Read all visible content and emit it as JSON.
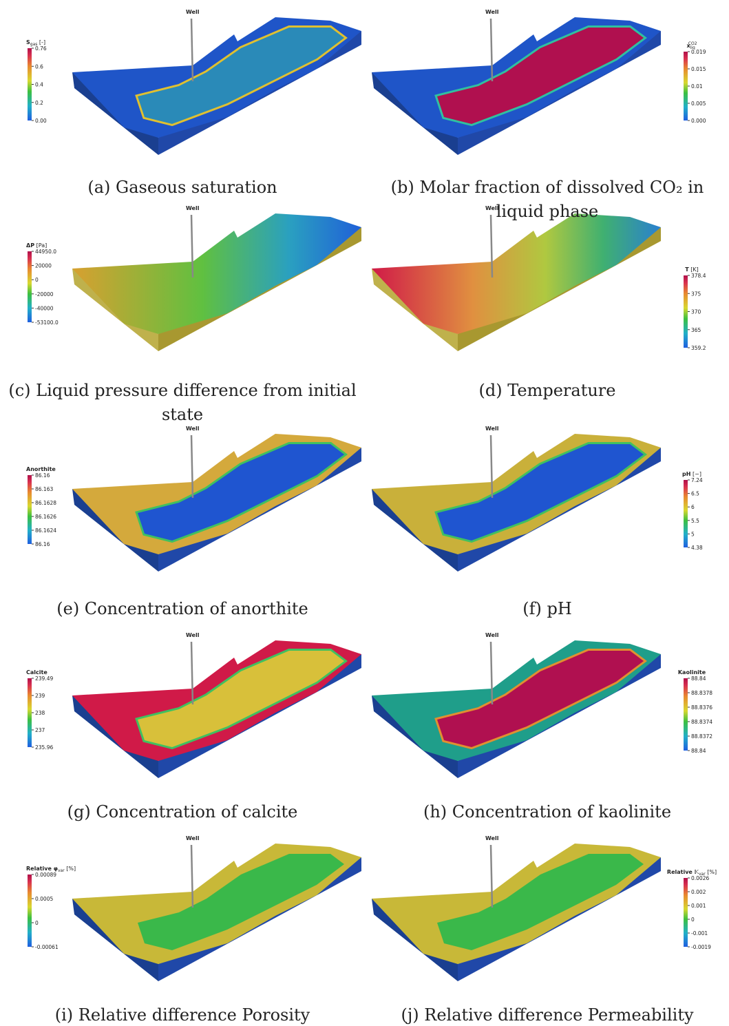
{
  "panels": [
    {
      "well": "Well",
      "legend": {
        "symbol": "S",
        "sub": "gas",
        "unit": "[-]"
      },
      "ticks": [
        "0.76",
        "0.6",
        "0.4",
        "0.2",
        "0.00"
      ],
      "caption": [
        "(a) Gaseous saturation"
      ]
    },
    {
      "well": "Well",
      "legend": {
        "symbol": "x",
        "sub": "liq",
        "sup": "CO2"
      },
      "ticks": [
        "0.019",
        "0.015",
        "0.01",
        "0.005",
        "0.000"
      ],
      "caption": [
        "(b) Molar fraction of dissolved CO₂ in",
        "liquid phase"
      ]
    },
    {
      "well": "Well",
      "legend": {
        "symbol": "ΔP",
        "unit": "[Pa]"
      },
      "ticks": [
        "44950.0",
        "20000",
        "0",
        "-20000",
        "-40000",
        "-53100.0"
      ],
      "caption": [
        "(c) Liquid pressure difference from initial",
        "state"
      ]
    },
    {
      "well": "Well",
      "legend": {
        "symbol": "T",
        "unit": "[K]"
      },
      "ticks": [
        "378.4",
        "375",
        "370",
        "365",
        "359.2"
      ],
      "caption": [
        "(d) Temperature"
      ]
    },
    {
      "well": "Well",
      "legend": {
        "symbol": "Anorthite"
      },
      "ticks": [
        "86.16",
        "86.163",
        "86.1628",
        "86.1626",
        "86.1624",
        "86.16"
      ],
      "caption": [
        "(e) Concentration of anorthite"
      ]
    },
    {
      "well": "Well",
      "legend": {
        "symbol": "pH",
        "unit": "[−]"
      },
      "ticks": [
        "7.24",
        "6.5",
        "6",
        "5.5",
        "5",
        "4.38"
      ],
      "caption": [
        "(f) pH"
      ]
    },
    {
      "well": "Well",
      "legend": {
        "symbol": "Calcite"
      },
      "ticks": [
        "239.49",
        "239",
        "238",
        "237",
        "235.96"
      ],
      "caption": [
        "(g) Concentration of calcite"
      ]
    },
    {
      "well": "Well",
      "legend": {
        "symbol": "Kaolinite"
      },
      "ticks": [
        "88.84",
        "88.8378",
        "88.8376",
        "88.8374",
        "88.8372",
        "88.84"
      ],
      "caption": [
        "(h) Concentration of kaolinite"
      ]
    },
    {
      "well": "Well",
      "legend": {
        "prefix": "Relative",
        "symbol": "φ",
        "sub": "var",
        "unit": "[%]"
      },
      "ticks": [
        "0.00089",
        "0.0005",
        "0",
        "-0.00061"
      ],
      "caption": [
        "(i) Relative difference Porosity"
      ]
    },
    {
      "well": "Well",
      "legend": {
        "prefix": "Relative",
        "symbol": "𝕂",
        "sub": "var",
        "unit": "[%]"
      },
      "ticks": [
        "0.0026",
        "0.002",
        "0.001",
        "0",
        "-0.001",
        "-0.0019"
      ],
      "caption": [
        "(j) Relative difference Permeability"
      ]
    }
  ]
}
